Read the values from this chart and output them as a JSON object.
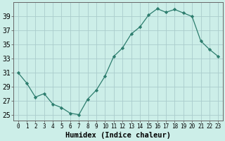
{
  "x": [
    0,
    1,
    2,
    3,
    4,
    5,
    6,
    7,
    8,
    9,
    10,
    11,
    12,
    13,
    14,
    15,
    16,
    17,
    18,
    19,
    20,
    21,
    22,
    23
  ],
  "y": [
    31,
    29.5,
    27.5,
    28,
    26.5,
    26,
    25.2,
    25.0,
    27.2,
    28.5,
    30.5,
    33.3,
    34.5,
    36.5,
    37.5,
    39.2,
    40.1,
    39.6,
    40.0,
    39.5,
    39.0,
    35.5,
    34.3,
    33.3
  ],
  "line_color": "#2d7d6e",
  "marker": "D",
  "marker_size": 2.2,
  "bg_color": "#cceee8",
  "grid_color": "#aacccc",
  "xlabel": "Humidex (Indice chaleur)",
  "ylabel_ticks": [
    25,
    27,
    29,
    31,
    33,
    35,
    37,
    39
  ],
  "ylim": [
    24.2,
    41.0
  ],
  "xlim": [
    -0.5,
    23.5
  ],
  "xlabel_fontsize": 7.5,
  "tick_fontsize": 7,
  "xtick_fontsize": 5.5
}
